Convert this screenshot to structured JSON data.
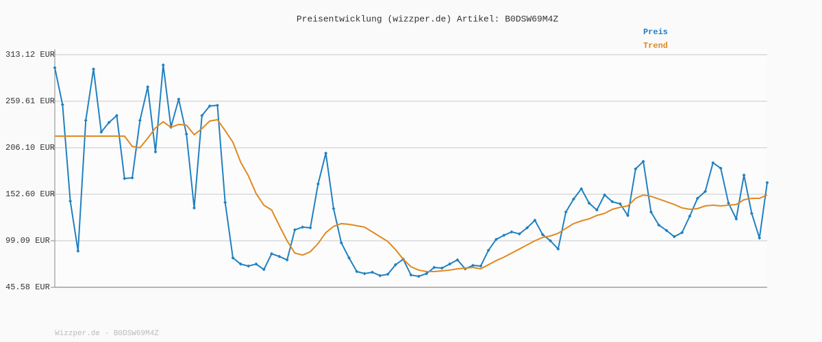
{
  "chart_data": {
    "type": "line",
    "title": "Preisentwicklung (wizzper.de) Artikel: B0DSW69M4Z",
    "footer": "Wizzper.de - B0DSW69M4Z",
    "categories": [
      null,
      null,
      null,
      null,
      null,
      null,
      null,
      null,
      null,
      null,
      null,
      null,
      null,
      null,
      null,
      null,
      null,
      null,
      null,
      null,
      null,
      null,
      null,
      null,
      null,
      null,
      null,
      null,
      null,
      null,
      null,
      null,
      null,
      null,
      null,
      null,
      null,
      null,
      null,
      null,
      null,
      null,
      null,
      null,
      null,
      null,
      null,
      null,
      null,
      null,
      null,
      null,
      null,
      null,
      null,
      null,
      null,
      null,
      null,
      null,
      null,
      null,
      null,
      null,
      null,
      null,
      null,
      null,
      null,
      null,
      null,
      null,
      null,
      null,
      null,
      null,
      null,
      null,
      null,
      null,
      null,
      null,
      null,
      null,
      null,
      null,
      null,
      null,
      null,
      null,
      null,
      null,
      null
    ],
    "series": [
      {
        "name": "Preis",
        "color": "#1f80c0",
        "markers": true,
        "values": [
          298.2,
          255.7,
          144.7,
          87.3,
          237.6,
          296.6,
          224.2,
          235.2,
          243.1,
          170.7,
          171.5,
          237.6,
          276.1,
          201.4,
          301.3,
          229.7,
          262.0,
          221.8,
          136.9,
          243.1,
          254.1,
          254.9,
          143.2,
          79.4,
          72.3,
          70.0,
          72.3,
          66.0,
          84.1,
          81.0,
          77.1,
          111.7,
          114.8,
          114.0,
          164.4,
          199.8,
          136.1,
          96.7,
          79.4,
          63.7,
          61.3,
          62.9,
          59.0,
          60.5,
          71.5,
          77.8,
          59.7,
          58.2,
          61.3,
          68.4,
          67.6,
          72.3,
          77.1,
          66.8,
          70.8,
          70.0,
          88.1,
          100.7,
          105.4,
          109.3,
          107.0,
          114.0,
          122.7,
          106.2,
          99.1,
          89.6,
          132.1,
          147.1,
          158.9,
          142.4,
          134.5,
          151.8,
          144.0,
          141.6,
          128.2,
          181.7,
          190.4,
          132.1,
          117.2,
          110.9,
          103.8,
          108.5,
          127.4,
          147.9,
          155.8,
          188.8,
          182.5,
          142.4,
          124.3,
          174.6,
          130.6,
          102.2,
          166.0
        ]
      },
      {
        "name": "Trend",
        "color": "#e0881f",
        "markers": false,
        "values": [
          219.5,
          219.5,
          219.5,
          219.5,
          219.5,
          219.5,
          219.5,
          219.5,
          219.5,
          219.5,
          207.7,
          206.1,
          217.1,
          228.9,
          236.0,
          229.7,
          232.9,
          232.1,
          221.1,
          228.1,
          236.8,
          238.4,
          225.8,
          212.4,
          189.6,
          173.8,
          153.4,
          140.0,
          134.5,
          116.4,
          99.1,
          84.9,
          82.6,
          86.5,
          95.9,
          108.5,
          115.6,
          118.8,
          118.0,
          116.4,
          114.8,
          109.3,
          103.8,
          98.3,
          88.9,
          77.8,
          69.2,
          65.3,
          63.7,
          63.7,
          64.5,
          65.3,
          66.8,
          67.6,
          68.4,
          66.8,
          71.5,
          76.3,
          80.2,
          84.9,
          89.6,
          94.4,
          99.1,
          103.0,
          104.6,
          107.7,
          113.3,
          118.8,
          121.9,
          124.3,
          128.2,
          130.6,
          135.3,
          137.6,
          139.2,
          147.9,
          151.8,
          150.2,
          147.1,
          144.0,
          140.8,
          136.9,
          135.3,
          136.1,
          139.2,
          140.0,
          139.2,
          140.0,
          140.8,
          146.3,
          147.9,
          147.9,
          151.8
        ]
      }
    ],
    "ylim": [
      45.58,
      313.12
    ],
    "yticks": [
      {
        "value": 45.58,
        "label": "45.58 EUR"
      },
      {
        "value": 99.09,
        "label": "99.09 EUR"
      },
      {
        "value": 152.6,
        "label": "152.60 EUR"
      },
      {
        "value": 206.1,
        "label": "206.10 EUR"
      },
      {
        "value": 259.61,
        "label": "259.61 EUR"
      },
      {
        "value": 313.12,
        "label": "313.12 EUR"
      }
    ],
    "grid": true,
    "legend": "top-right"
  }
}
